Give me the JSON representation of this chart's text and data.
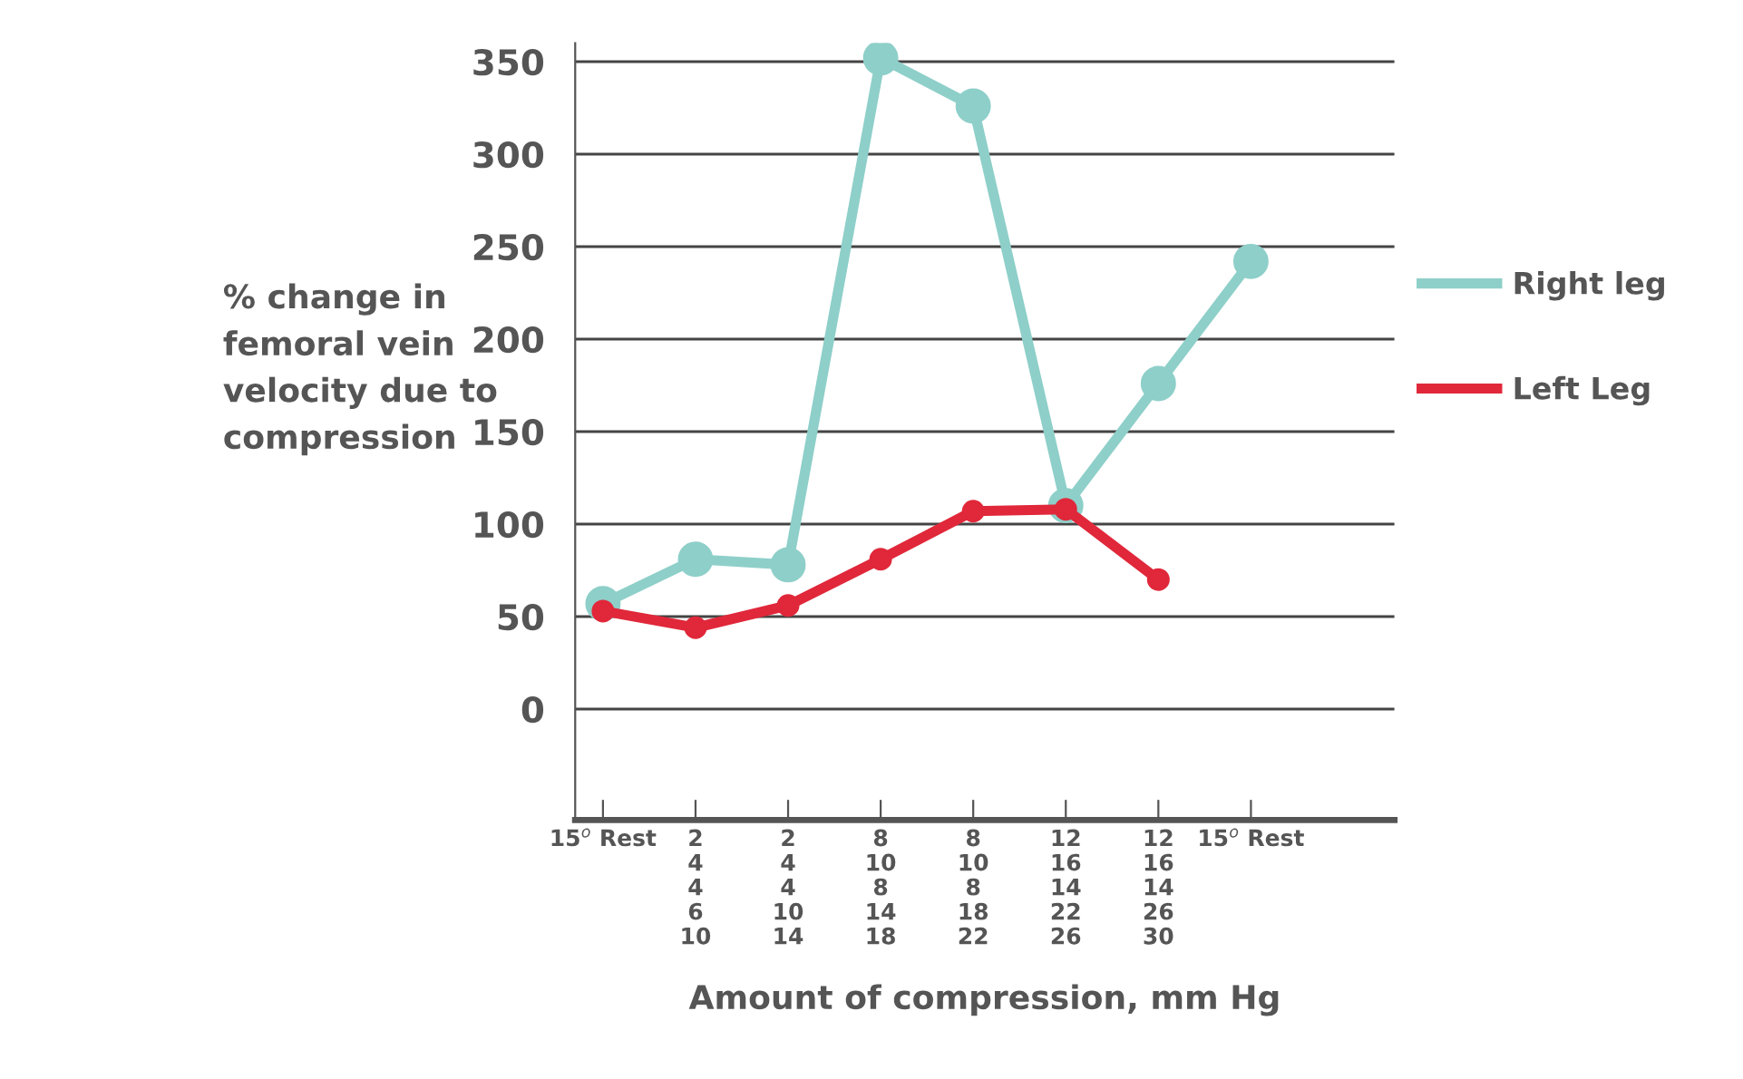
{
  "chart_data": {
    "type": "line",
    "xlabel": "Amount of compression, mm Hg",
    "ylabel": "% change in\nfemoral vein\nvelocity due to\ncompression",
    "categories": [
      "15$^{o}$ Rest",
      "2\n4\n4\n6\n10",
      "2\n4\n4\n10\n14",
      "8\n10\n8\n14\n18",
      "8\n10\n8\n18\n22",
      "12\n16\n14\n22\n26",
      "12\n16\n14\n26\n30",
      "15$^{o}$ Rest"
    ],
    "series": [
      {
        "name": "Right leg",
        "color": "#8ecfc9",
        "values": [
          57,
          81,
          78,
          352,
          326,
          110,
          176,
          242
        ]
      },
      {
        "name": "Left Leg",
        "color": "#e0283a",
        "values": [
          53,
          44,
          56,
          81,
          107,
          108,
          70,
          null
        ]
      }
    ],
    "ylim": [
      -60,
      360
    ],
    "yticks": [
      0,
      50,
      100,
      150,
      200,
      250,
      300,
      350
    ],
    "grid": "y",
    "legend": "right",
    "marker": "circle",
    "line_style": "solid"
  }
}
